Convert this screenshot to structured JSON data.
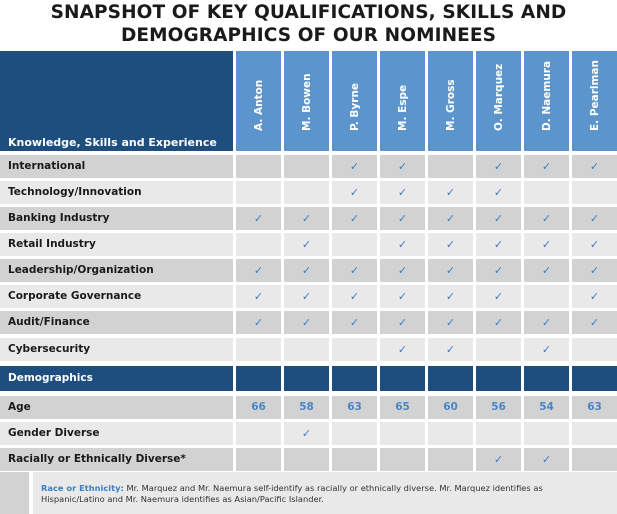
{
  "title_line1": "SNAPSHOT OF KEY QUALIFICATIONS, SKILLS AND",
  "title_line2": "DEMOGRAPHICS OF OUR NOMINEES",
  "header_label": "Knowledge, Skills and Experience",
  "nominees": [
    "A. Anton",
    "M. Bowen",
    "P. Byrne",
    "M. Espe",
    "M. Gross",
    "O. Marquez",
    "D. Naemura",
    "E. Pearlman"
  ],
  "skills": [
    {
      "label": "International",
      "cells": [
        "",
        "",
        "✓",
        "✓",
        "",
        "✓",
        "✓",
        "✓"
      ]
    },
    {
      "label": "Technology/Innovation",
      "cells": [
        "",
        "",
        "✓",
        "✓",
        "✓",
        "✓",
        "",
        ""
      ]
    },
    {
      "label": "Banking Industry",
      "cells": [
        "✓",
        "✓",
        "✓",
        "✓",
        "✓",
        "✓",
        "✓",
        "✓"
      ]
    },
    {
      "label": "Retail Industry",
      "cells": [
        "",
        "✓",
        "",
        "✓",
        "✓",
        "✓",
        "✓",
        "✓"
      ]
    },
    {
      "label": "Leadership/Organization",
      "cells": [
        "✓",
        "✓",
        "✓",
        "✓",
        "✓",
        "✓",
        "✓",
        "✓"
      ]
    },
    {
      "label": "Corporate Governance",
      "cells": [
        "✓",
        "✓",
        "✓",
        "✓",
        "✓",
        "✓",
        "",
        "✓"
      ]
    },
    {
      "label": "Audit/Finance",
      "cells": [
        "✓",
        "✓",
        "✓",
        "✓",
        "✓",
        "✓",
        "✓",
        "✓"
      ]
    },
    {
      "label": "Cybersecurity",
      "cells": [
        "",
        "",
        "",
        "✓",
        "✓",
        "",
        "✓",
        ""
      ]
    }
  ],
  "demographics_label": "Demographics",
  "demographics": [
    {
      "label": "Age",
      "cells": [
        "66",
        "58",
        "63",
        "65",
        "60",
        "56",
        "54",
        "63"
      ]
    },
    {
      "label": "Gender Diverse",
      "cells": [
        "",
        "✓",
        "",
        "",
        "",
        "",
        "",
        ""
      ]
    },
    {
      "label": "Racially or Ethnically Diverse*",
      "cells": [
        "",
        "",
        "",
        "",
        "",
        "✓",
        "✓",
        ""
      ]
    }
  ],
  "footnote_heading": "Race or Ethnicity:",
  "footnote_text": "Mr. Marquez and Mr. Naemura self-identify as racially or ethnically diverse. Mr. Marquez identifies as Hispanic/Latino and Mr. Naemura identifies as Asian/Pacific Islander."
}
